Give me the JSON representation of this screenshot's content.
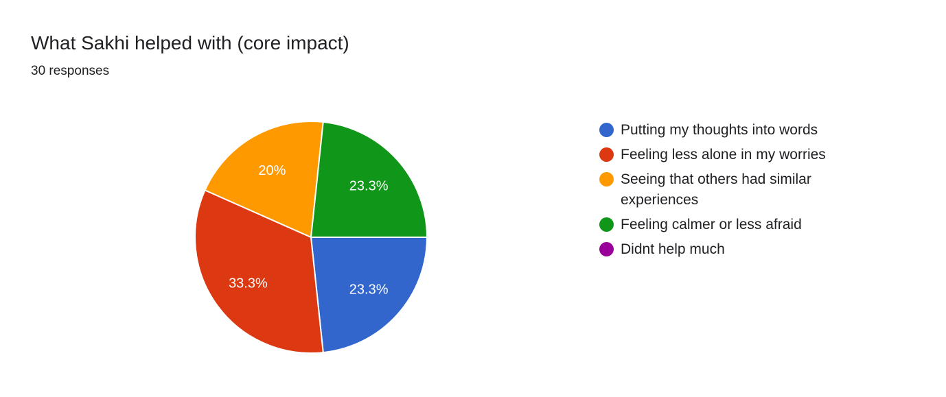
{
  "title": "What Sakhi helped with (core impact)",
  "subtitle": "30 responses",
  "chart_data": {
    "type": "pie",
    "categories": [
      "Putting my thoughts into words",
      "Feeling less alone in my worries",
      "Seeing that others had similar experiences",
      "Feeling calmer or less afraid",
      "Didnt help much"
    ],
    "values": [
      23.3,
      33.3,
      20,
      23.3,
      0
    ],
    "labels": [
      "23.3%",
      "33.3%",
      "20%",
      "23.3%",
      ""
    ],
    "colors": [
      "#3366cc",
      "#dc3912",
      "#ff9900",
      "#109618",
      "#990099"
    ],
    "legend": "right"
  }
}
